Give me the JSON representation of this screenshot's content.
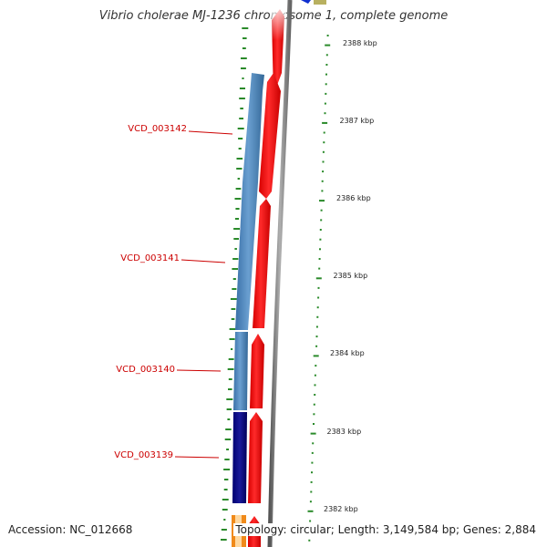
{
  "title": "Vibrio cholerae MJ-1236 chromosome 1, complete genome",
  "footer": {
    "accession": "Accession: NC_012668",
    "summary": "Topology: circular; Length: 3,149,584 bp; Genes: 2,884"
  },
  "colors": {
    "forward_cds": "#ff1010",
    "reverse_cds_light": "#4a86bf",
    "reverse_cds_dark": "#0a0a80",
    "backbone": "#888888",
    "gc_ticks": "#2a8a2a",
    "label_text": "#cc0000"
  },
  "scale_labels": [
    "2388 kbp",
    "2387 kbp",
    "2386 kbp",
    "2385 kbp",
    "2384 kbp",
    "2383 kbp",
    "2382 kbp"
  ],
  "genes": [
    {
      "label": "VCD_003142",
      "strand": "reverse",
      "color": "light"
    },
    {
      "label": "VCD_003141",
      "strand": "reverse",
      "color": "light"
    },
    {
      "label": "VCD_003140",
      "strand": "reverse",
      "color": "light"
    },
    {
      "label": "VCD_003139",
      "strand": "reverse",
      "color": "dark"
    }
  ]
}
